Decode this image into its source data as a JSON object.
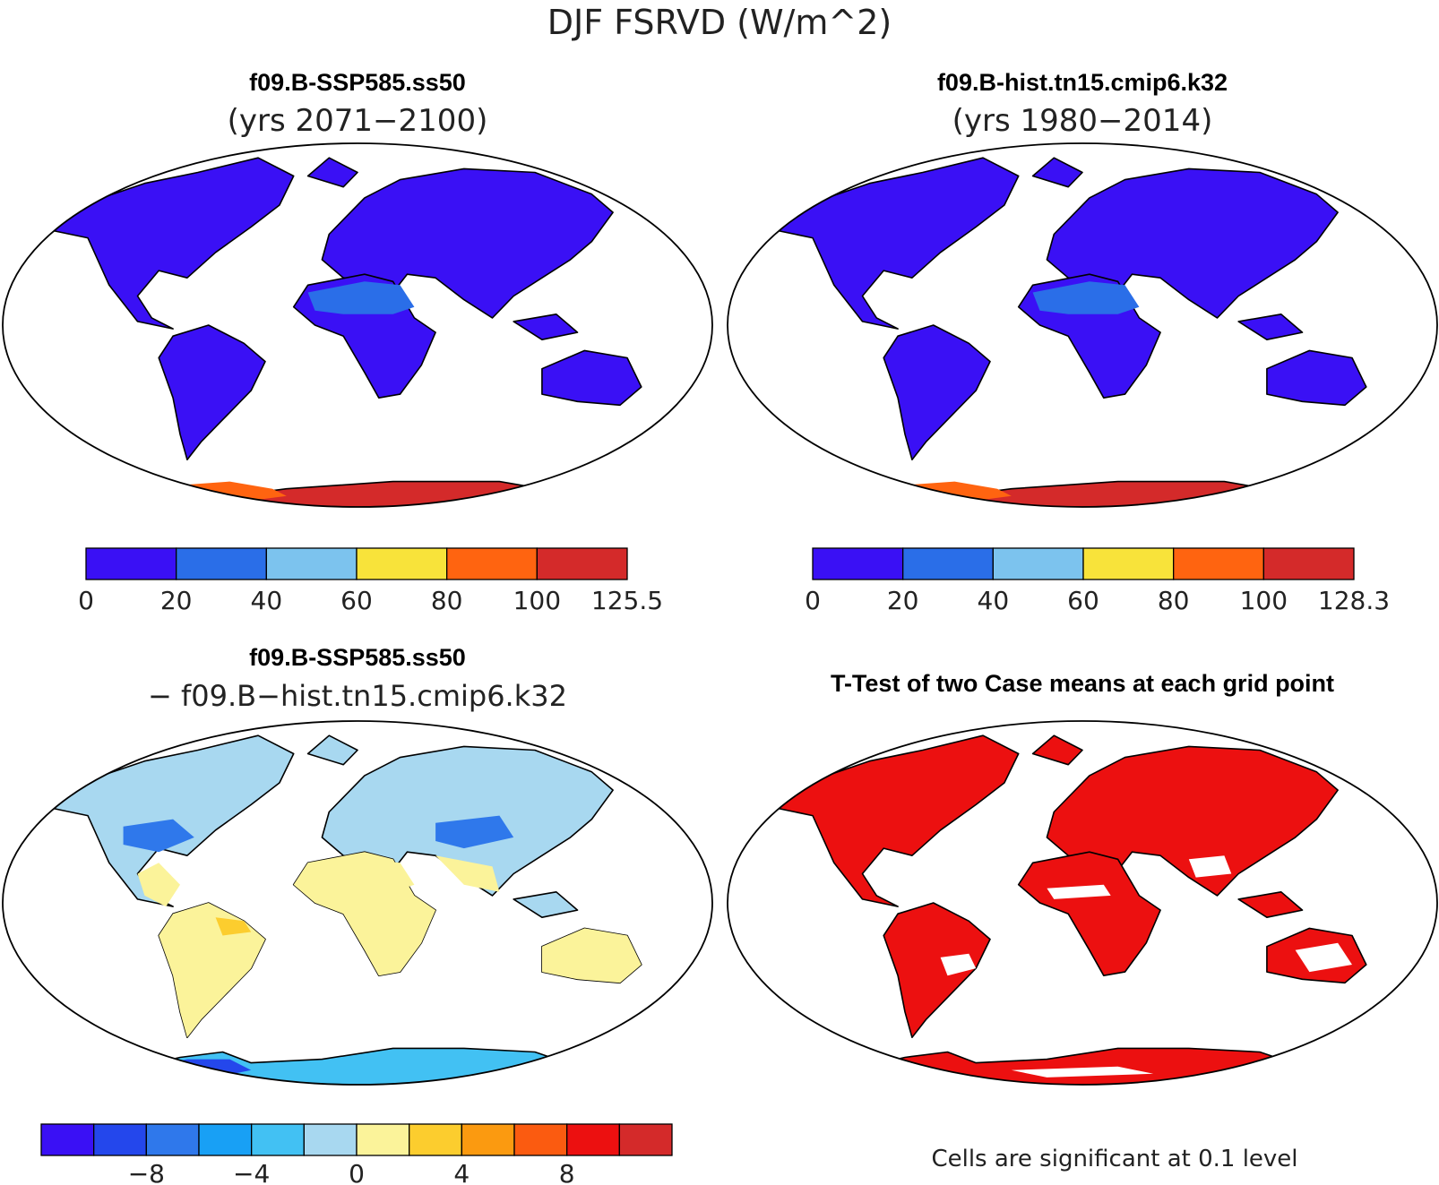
{
  "figure": {
    "title": "DJF FSRVD (W/m^2)"
  },
  "chart_data": [
    {
      "type": "map",
      "title": "f09.B-SSP585.ss50",
      "subtitle": "(yrs 2071−2100)",
      "colorbar": {
        "colors": [
          "#3a10f5",
          "#2a6ee8",
          "#7cc3ee",
          "#f8e33a",
          "#ff6410",
          "#d42a2a"
        ],
        "tick_labels": [
          "0",
          "20",
          "40",
          "60",
          "80",
          "100",
          "125.5"
        ]
      },
      "fields": [
        {
          "region": "land",
          "color": "#3a10f5"
        },
        {
          "region": "sahara_arabia",
          "color": "#2a6ee8"
        },
        {
          "region": "antarctica_interior",
          "color": "#d42a2a"
        },
        {
          "region": "antarctica_edge",
          "color": "#ff6410"
        },
        {
          "region": "antarctica_rim",
          "color": "#f8e33a"
        }
      ]
    },
    {
      "type": "map",
      "title": "f09.B-hist.tn15.cmip6.k32",
      "subtitle": "(yrs 1980−2014)",
      "colorbar": {
        "colors": [
          "#3a10f5",
          "#2a6ee8",
          "#7cc3ee",
          "#f8e33a",
          "#ff6410",
          "#d42a2a"
        ],
        "tick_labels": [
          "0",
          "20",
          "40",
          "60",
          "80",
          "100",
          "128.3"
        ]
      },
      "fields": [
        {
          "region": "land",
          "color": "#3a10f5"
        },
        {
          "region": "sahara_arabia",
          "color": "#2a6ee8"
        },
        {
          "region": "antarctica_interior",
          "color": "#d42a2a"
        },
        {
          "region": "antarctica_edge",
          "color": "#ff6410"
        },
        {
          "region": "antarctica_rim",
          "color": "#f8e33a"
        }
      ]
    },
    {
      "type": "map",
      "title": "f09.B-SSP585.ss50",
      "subtitle": "− f09.B−hist.tn15.cmip6.k32",
      "colorbar": {
        "colors": [
          "#3a10f5",
          "#2447ec",
          "#2f78eb",
          "#18a0f5",
          "#42c1f3",
          "#a8d8f0",
          "#fbf39a",
          "#fccd2e",
          "#fb9a10",
          "#fb5b10",
          "#ec1010",
          "#d42a2a"
        ],
        "tick_labels": [
          "−8",
          "−4",
          "0",
          "4",
          "8"
        ]
      },
      "fields": [
        {
          "region": "land",
          "color": "#a8d8f0"
        },
        {
          "region": "tropics_south",
          "color": "#fbf39a"
        },
        {
          "region": "sahara_arabia",
          "color": "#fbf39a"
        },
        {
          "region": "amazon_hotspot",
          "color": "#fccd2e"
        },
        {
          "region": "north_america_low",
          "color": "#2f78eb"
        },
        {
          "region": "central_asia_low",
          "color": "#2f78eb"
        },
        {
          "region": "antarctica",
          "color": "#42c1f3"
        },
        {
          "region": "antarctica_west",
          "color": "#2447ec"
        }
      ]
    },
    {
      "type": "map",
      "title": "T-Test of two Case means at each grid point",
      "note": "Cells are significant at 0.1 level",
      "fields": [
        {
          "region": "land",
          "color": "#ec1010"
        },
        {
          "region": "antarctica",
          "color": "#ec1010"
        },
        {
          "region": "insignificant_patches",
          "color": "#ffffff"
        }
      ]
    }
  ]
}
